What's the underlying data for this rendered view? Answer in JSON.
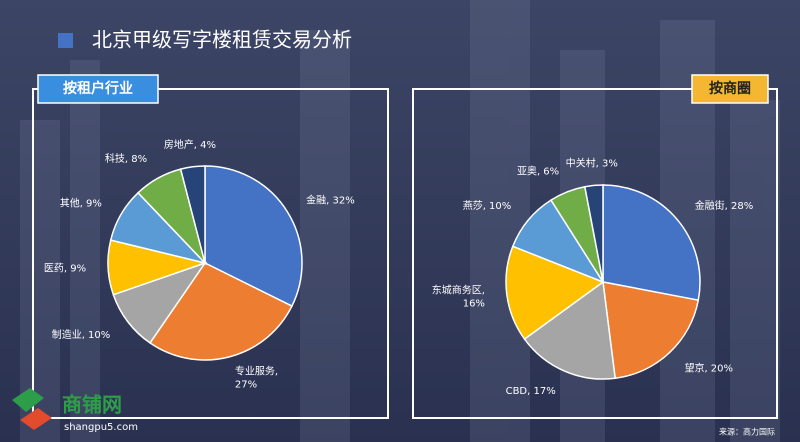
{
  "title": "北京甲级写字楼租赁交易分析",
  "source": "来源：高力国际",
  "watermark": {
    "name": "商铺网",
    "site": "shangpu5.com"
  },
  "chart_data": [
    {
      "type": "pie",
      "title": "按租户行业",
      "values": [
        32,
        27,
        10,
        9,
        9,
        8,
        4
      ],
      "value_labels": [
        "金融, 32%",
        "专业服务,\n27%",
        "制造业, 10%",
        "医药, 9%",
        "其他, 9%",
        "科技, 8%",
        "房地产, 4%"
      ],
      "colors": [
        "#4472c4",
        "#ed7d31",
        "#a5a5a5",
        "#ffc000",
        "#5b9bd5",
        "#70ad47",
        "#264478"
      ]
    },
    {
      "type": "pie",
      "title": "按商圈",
      "values": [
        28,
        20,
        17,
        16,
        10,
        6,
        3
      ],
      "value_labels": [
        "金融街, 28%",
        "望京, 20%",
        "CBD, 17%",
        "东城商务区,\n16%",
        "燕莎, 10%",
        "亚奥, 6%",
        "中关村, 3%"
      ],
      "colors": [
        "#4472c4",
        "#ed7d31",
        "#a5a5a5",
        "#ffc000",
        "#5b9bd5",
        "#70ad47",
        "#264478"
      ]
    }
  ]
}
